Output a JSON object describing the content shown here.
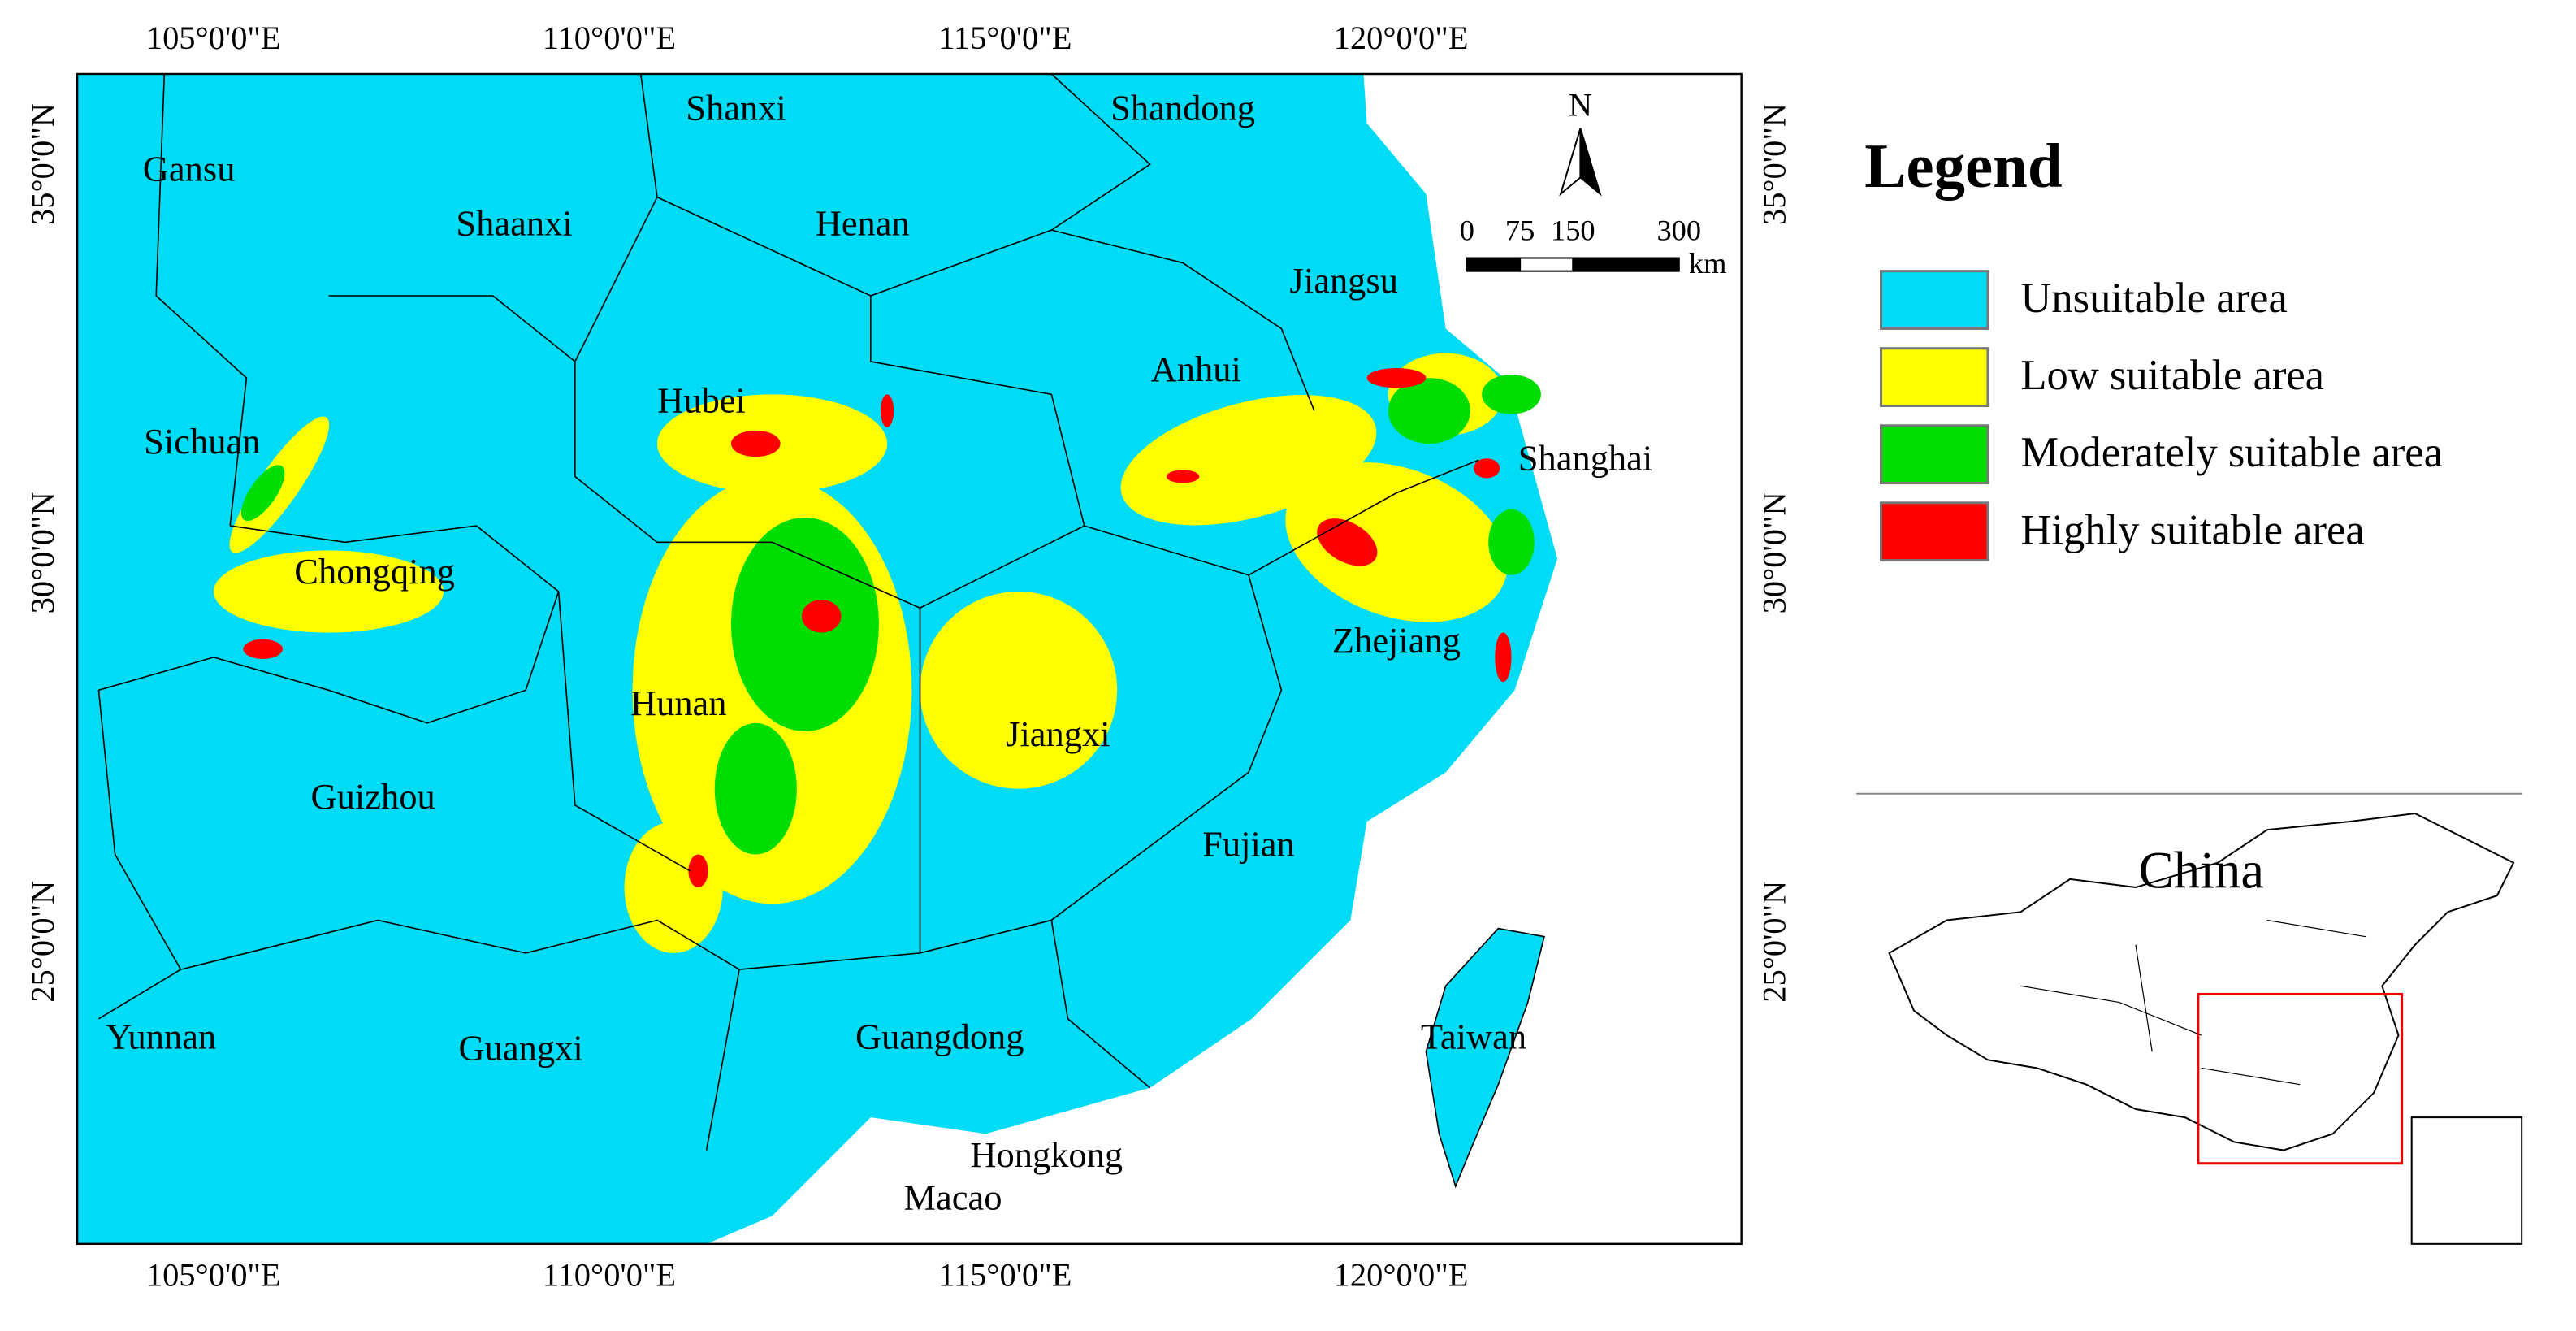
{
  "map": {
    "lon_range": [
      103.28,
      124.3
    ],
    "lat_range": [
      21.11,
      36.16
    ],
    "lon_ticks": [
      {
        "value": 105,
        "label": "105°0'0\"E"
      },
      {
        "value": 110,
        "label": "110°0'0\"E"
      },
      {
        "value": 115,
        "label": "115°0'0\"E"
      },
      {
        "value": 120,
        "label": "120°0'0\"E"
      }
    ],
    "lat_ticks": [
      {
        "value": 35,
        "label": "35°0'0\"N"
      },
      {
        "value": 30,
        "label": "30°0'0\"N"
      },
      {
        "value": 25,
        "label": "25°0'0\"N"
      }
    ],
    "provinces": [
      "Gansu",
      "Shaanxi",
      "Shanxi",
      "Henan",
      "Shandong",
      "Jiangsu",
      "Hubei",
      "Anhui",
      "Sichuan",
      "Shanghai",
      "Chongqing",
      "Zhejiang",
      "Hunan",
      "Jiangxi",
      "Guizhou",
      "Fujian",
      "Yunnan",
      "Guangxi",
      "Guangdong",
      "Taiwan",
      "Hongkong",
      "Macao"
    ],
    "north": "N",
    "scale_bar": {
      "ticks": [
        0,
        75,
        150,
        300
      ],
      "unit": "km"
    }
  },
  "legend": {
    "title": "Legend",
    "items": [
      {
        "label": "Unsuitable area",
        "color": "#00dcf5"
      },
      {
        "label": "Low suitable area",
        "color": "#ffff00"
      },
      {
        "label": "Moderately suitable area",
        "color": "#00dd00"
      },
      {
        "label": "Highly suitable area",
        "color": "#ff0000"
      }
    ]
  },
  "inset": {
    "title": "China"
  }
}
